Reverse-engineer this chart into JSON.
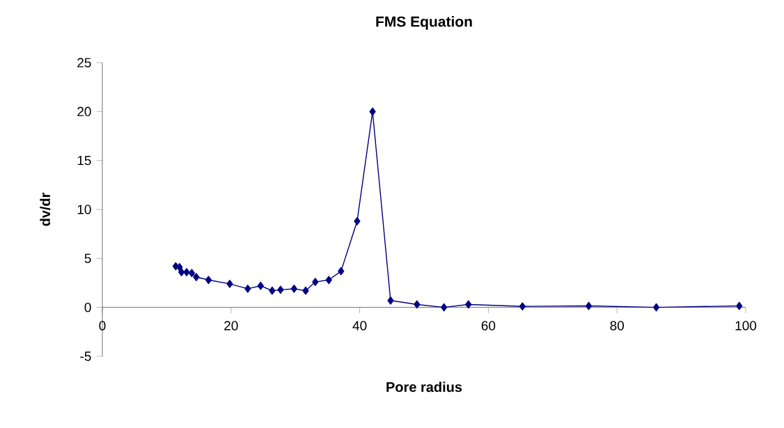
{
  "chart_data": {
    "type": "line",
    "title": "FMS Equation",
    "xlabel": "Pore radius",
    "ylabel": "dv/dr",
    "x": [
      11.4,
      12.0,
      12.3,
      13.1,
      13.9,
      14.6,
      16.5,
      19.8,
      22.6,
      24.6,
      26.4,
      27.7,
      29.8,
      31.6,
      33.1,
      35.2,
      37.1,
      39.6,
      42.0,
      44.8,
      48.9,
      53.1,
      56.9,
      65.3,
      75.6,
      86.1,
      99.0
    ],
    "series": [
      {
        "color": "#000080",
        "values": [
          4.2,
          4.1,
          3.6,
          3.6,
          3.5,
          3.1,
          2.8,
          2.4,
          1.9,
          2.2,
          1.7,
          1.8,
          1.9,
          1.7,
          2.6,
          2.8,
          3.7,
          8.8,
          20.0,
          0.7,
          0.3,
          0.0,
          0.3,
          0.1,
          0.15,
          0.0,
          0.15
        ]
      }
    ],
    "xlim": [
      0,
      100
    ],
    "ylim": [
      -5,
      25
    ],
    "xticks": [
      0,
      20,
      40,
      60,
      80,
      100
    ],
    "yticks": [
      -5,
      0,
      5,
      10,
      15,
      20,
      25
    ],
    "marker": "diamond",
    "line_style": "solid",
    "grid": false,
    "legend": false
  }
}
